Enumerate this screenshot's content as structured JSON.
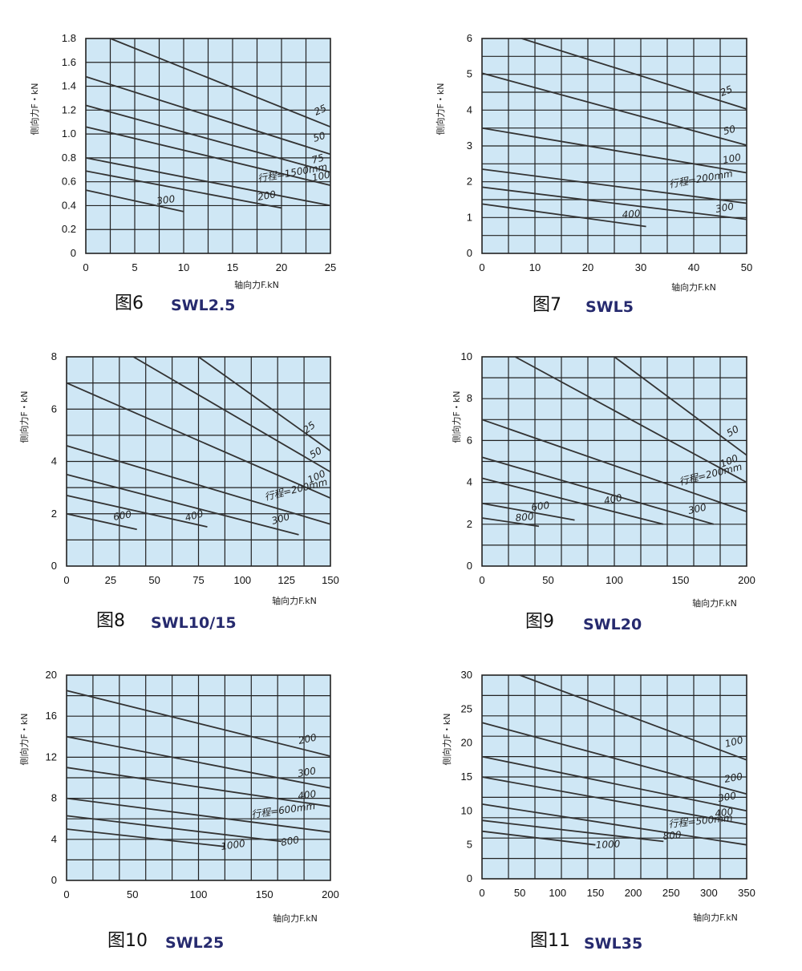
{
  "chart_data": [
    {
      "type": "line",
      "figure": "图6",
      "model": "SWL2.5",
      "xlabel": "轴向力F.kN",
      "ylabel": "侧向力F・kN",
      "xlim": [
        0,
        25
      ],
      "ylim": [
        0,
        1.8
      ],
      "xticks": [
        "0",
        "5",
        "10",
        "15",
        "20",
        "25"
      ],
      "yticks": [
        "0",
        "0.2",
        "0.4",
        "0.6",
        "0.8",
        "1.0",
        "1.2",
        "1.4",
        "1.6",
        "1.8"
      ],
      "grid": true,
      "series": [
        {
          "name": "25",
          "x": [
            2.5,
            25
          ],
          "y": [
            1.8,
            1.06
          ]
        },
        {
          "name": "50",
          "x": [
            0,
            25
          ],
          "y": [
            1.48,
            0.83
          ]
        },
        {
          "name": "75",
          "x": [
            0,
            25
          ],
          "y": [
            1.24,
            0.68
          ]
        },
        {
          "name": "100",
          "x": [
            0,
            25
          ],
          "y": [
            1.06,
            0.57
          ]
        },
        {
          "name": "行程=1500mm",
          "x": [
            0,
            25
          ],
          "y": [
            0.8,
            0.4
          ]
        },
        {
          "name": "200",
          "x": [
            0,
            20
          ],
          "y": [
            0.69,
            0.38
          ]
        },
        {
          "name": "300",
          "x": [
            0,
            10
          ],
          "y": [
            0.53,
            0.35
          ]
        }
      ]
    },
    {
      "type": "line",
      "figure": "图7",
      "model": "SWL5",
      "xlabel": "轴向力F.kN",
      "ylabel": "侧向力F・kN",
      "xlim": [
        0,
        50
      ],
      "ylim": [
        0,
        6
      ],
      "xticks": [
        "0",
        "10",
        "20",
        "30",
        "40",
        "50"
      ],
      "yticks": [
        "0",
        "1",
        "2",
        "3",
        "4",
        "5",
        "6"
      ],
      "grid": true,
      "series": [
        {
          "name": "25",
          "x": [
            7.5,
            50
          ],
          "y": [
            6,
            4.03
          ]
        },
        {
          "name": "50",
          "x": [
            0,
            50
          ],
          "y": [
            5.03,
            3.02
          ]
        },
        {
          "name": "100",
          "x": [
            0,
            50
          ],
          "y": [
            3.5,
            2.25
          ]
        },
        {
          "name": "行程=200mm",
          "x": [
            0,
            50
          ],
          "y": [
            2.35,
            1.4
          ]
        },
        {
          "name": "300",
          "x": [
            0,
            50
          ],
          "y": [
            1.85,
            0.95
          ]
        },
        {
          "name": "400",
          "x": [
            0,
            31
          ],
          "y": [
            1.38,
            0.75
          ]
        }
      ]
    },
    {
      "type": "line",
      "figure": "图8",
      "model": "SWL10/15",
      "xlabel": "轴向力F.kN",
      "ylabel": "侧向力F・kN",
      "xlim": [
        0,
        150
      ],
      "ylim": [
        0,
        8
      ],
      "xticks": [
        "0",
        "25",
        "50",
        "75",
        "100",
        "125",
        "150"
      ],
      "yticks": [
        "0",
        "2",
        "4",
        "6",
        "8"
      ],
      "grid": true,
      "series": [
        {
          "name": "25",
          "x": [
            75,
            150
          ],
          "y": [
            8,
            4.4
          ]
        },
        {
          "name": "50",
          "x": [
            38,
            150
          ],
          "y": [
            8,
            3.6
          ]
        },
        {
          "name": "100",
          "x": [
            0,
            150
          ],
          "y": [
            7,
            2.6
          ]
        },
        {
          "name": "行程=200mm",
          "x": [
            0,
            150
          ],
          "y": [
            4.6,
            1.6
          ]
        },
        {
          "name": "300",
          "x": [
            0,
            132
          ],
          "y": [
            3.5,
            1.2
          ]
        },
        {
          "name": "400",
          "x": [
            0,
            80
          ],
          "y": [
            2.7,
            1.5
          ]
        },
        {
          "name": "600",
          "x": [
            0,
            40
          ],
          "y": [
            2.0,
            1.4
          ]
        }
      ]
    },
    {
      "type": "line",
      "figure": "图9",
      "model": "SWL20",
      "xlabel": "轴向力F.kN",
      "ylabel": "侧向力F・kN",
      "xlim": [
        0,
        200
      ],
      "ylim": [
        0,
        10
      ],
      "xticks": [
        "0",
        "50",
        "100",
        "150",
        "200"
      ],
      "yticks": [
        "0",
        "2",
        "4",
        "6",
        "8",
        "10"
      ],
      "grid": true,
      "series": [
        {
          "name": "50",
          "x": [
            100,
            200
          ],
          "y": [
            10,
            5.3
          ]
        },
        {
          "name": "100",
          "x": [
            25,
            200
          ],
          "y": [
            10,
            4.0
          ]
        },
        {
          "name": "行程=200mm",
          "x": [
            0,
            200
          ],
          "y": [
            7,
            2.6
          ]
        },
        {
          "name": "300",
          "x": [
            0,
            175
          ],
          "y": [
            5.2,
            2.0
          ]
        },
        {
          "name": "400",
          "x": [
            0,
            137
          ],
          "y": [
            4.2,
            2.0
          ]
        },
        {
          "name": "600",
          "x": [
            0,
            70
          ],
          "y": [
            3.0,
            2.2
          ]
        },
        {
          "name": "800",
          "x": [
            0,
            43
          ],
          "y": [
            2.3,
            1.9
          ]
        }
      ]
    },
    {
      "type": "line",
      "figure": "图10",
      "model": "SWL25",
      "xlabel": "轴向力F.kN",
      "ylabel": "侧向力F・kN",
      "xlim": [
        0,
        200
      ],
      "ylim": [
        0,
        20
      ],
      "xticks": [
        "0",
        "50",
        "100",
        "150",
        "200"
      ],
      "yticks": [
        "0",
        "4",
        "8",
        "12",
        "16",
        "20"
      ],
      "grid": true,
      "series": [
        {
          "name": "200",
          "x": [
            0,
            200
          ],
          "y": [
            18.5,
            12.1
          ]
        },
        {
          "name": "300",
          "x": [
            0,
            200
          ],
          "y": [
            14,
            9.0
          ]
        },
        {
          "name": "400",
          "x": [
            0,
            200
          ],
          "y": [
            11,
            7.2
          ]
        },
        {
          "name": "行程=600mm",
          "x": [
            0,
            200
          ],
          "y": [
            8,
            4.7
          ]
        },
        {
          "name": "800",
          "x": [
            0,
            163
          ],
          "y": [
            6.3,
            3.8
          ]
        },
        {
          "name": "1000",
          "x": [
            0,
            120
          ],
          "y": [
            5.0,
            3.3
          ]
        }
      ]
    },
    {
      "type": "line",
      "figure": "图11",
      "model": "SWL35",
      "xlabel": "轴向力F.kN",
      "ylabel": "侧向力F・kN",
      "xlim": [
        0,
        350
      ],
      "ylim": [
        0,
        30
      ],
      "xticks": [
        "0",
        "50",
        "100",
        "150",
        "200",
        "250",
        "300",
        "350"
      ],
      "yticks": [
        "0",
        "5",
        "10",
        "15",
        "20",
        "25",
        "30"
      ],
      "grid": true,
      "series": [
        {
          "name": "100",
          "x": [
            50,
            350
          ],
          "y": [
            30,
            17.5
          ]
        },
        {
          "name": "200",
          "x": [
            0,
            350
          ],
          "y": [
            23,
            12.5
          ]
        },
        {
          "name": "300",
          "x": [
            0,
            350
          ],
          "y": [
            18,
            10
          ]
        },
        {
          "name": "400",
          "x": [
            0,
            350
          ],
          "y": [
            15,
            8
          ]
        },
        {
          "name": "行程=500mm",
          "x": [
            0,
            350
          ],
          "y": [
            11,
            5
          ]
        },
        {
          "name": "800",
          "x": [
            0,
            240
          ],
          "y": [
            8.6,
            5.5
          ]
        },
        {
          "name": "1000",
          "x": [
            0,
            150
          ],
          "y": [
            7.0,
            5.0
          ]
        }
      ]
    }
  ]
}
